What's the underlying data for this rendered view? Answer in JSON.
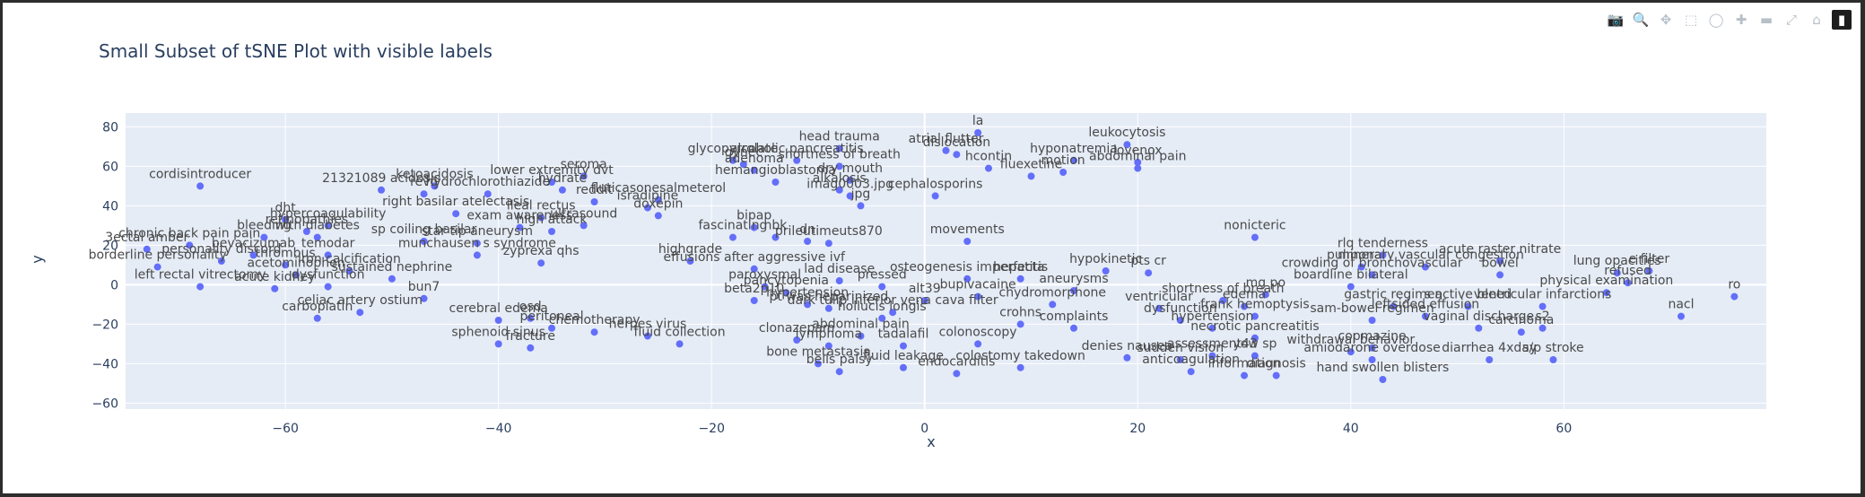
{
  "modebar": {
    "icons": [
      "camera-icon",
      "zoom-icon",
      "pan-icon",
      "box-select-icon",
      "lasso-icon",
      "zoom-in-icon",
      "zoom-out-icon",
      "autoscale-icon",
      "reset-axes-icon",
      "plotly-logo-icon"
    ],
    "glyphs": [
      "📷",
      "🔍",
      "✥",
      "⬚",
      "◯",
      "✚",
      "▬",
      "⤢",
      "⌂",
      "▮"
    ]
  },
  "colors": {
    "marker": "#636efa",
    "plot_bg": "#e5ecf6",
    "grid": "#ffffff",
    "text": "#2a3f5f"
  },
  "chart_data": {
    "type": "scatter",
    "title": "Small Subset of tSNE Plot with visible labels",
    "xlabel": "x",
    "ylabel": "y",
    "xlim": [
      -75,
      79
    ],
    "ylim": [
      -63,
      87
    ],
    "xticks": [
      -60,
      -40,
      -20,
      0,
      20,
      40,
      60
    ],
    "yticks": [
      -60,
      -40,
      -20,
      0,
      20,
      40,
      60,
      80
    ],
    "grid": true,
    "points": [
      {
        "x": 5,
        "y": 77,
        "label": "la"
      },
      {
        "x": 3,
        "y": 66,
        "label": "dislocation"
      },
      {
        "x": 19,
        "y": 71,
        "label": "leukocytosis"
      },
      {
        "x": 20,
        "y": 62,
        "label": "lovenox"
      },
      {
        "x": 20,
        "y": 59,
        "label": "abdominal pain"
      },
      {
        "x": 14,
        "y": 63,
        "label": "hyponatremia"
      },
      {
        "x": 2,
        "y": 68,
        "label": "atrial flutter"
      },
      {
        "x": 6,
        "y": 59,
        "label": "hcontin"
      },
      {
        "x": 10,
        "y": 55,
        "label": "fluexetine"
      },
      {
        "x": 13,
        "y": 57,
        "label": "motion"
      },
      {
        "x": 1,
        "y": 45,
        "label": "cephalosporins"
      },
      {
        "x": -8,
        "y": 69,
        "label": "head trauma"
      },
      {
        "x": -12,
        "y": 63,
        "label": "alcoholic pancreatitis"
      },
      {
        "x": -18,
        "y": 63,
        "label": "glycopyrrolate"
      },
      {
        "x": -17,
        "y": 61,
        "label": "gynec"
      },
      {
        "x": -16,
        "y": 58,
        "label": "adenoma"
      },
      {
        "x": -8,
        "y": 60,
        "label": "shortness of breath"
      },
      {
        "x": -14,
        "y": 52,
        "label": "hemangioblastoma"
      },
      {
        "x": -7,
        "y": 53,
        "label": "dry mouth"
      },
      {
        "x": -8,
        "y": 48,
        "label": "alkalosis"
      },
      {
        "x": -7,
        "y": 45,
        "label": "imag0003.jpg"
      },
      {
        "x": -6,
        "y": 40,
        "label": "jpg"
      },
      {
        "x": -32,
        "y": 55,
        "label": "seroma"
      },
      {
        "x": -35,
        "y": 52,
        "label": "lower extremity dvt"
      },
      {
        "x": -51,
        "y": 48,
        "label": "21321089 acidosis"
      },
      {
        "x": -46,
        "y": 50,
        "label": "ketoacidosis"
      },
      {
        "x": -47,
        "y": 46,
        "label": "revo"
      },
      {
        "x": -41,
        "y": 46,
        "label": "hydrochlorothiazide"
      },
      {
        "x": -34,
        "y": 48,
        "label": "hydrate"
      },
      {
        "x": -31,
        "y": 42,
        "label": "reddit"
      },
      {
        "x": -25,
        "y": 43,
        "label": "fluticasonesalmeterol"
      },
      {
        "x": -26,
        "y": 39,
        "label": "isradipine"
      },
      {
        "x": -25,
        "y": 35,
        "label": "doxepin"
      },
      {
        "x": -68,
        "y": 50,
        "label": "cordisintroducer"
      },
      {
        "x": -60,
        "y": 33,
        "label": "dht"
      },
      {
        "x": -56,
        "y": 30,
        "label": "hypercoagulability"
      },
      {
        "x": -44,
        "y": 36,
        "label": "right basilar atelectasis"
      },
      {
        "x": -36,
        "y": 34,
        "label": "ileal rectus"
      },
      {
        "x": -32,
        "y": 30,
        "label": "ultrasound"
      },
      {
        "x": -38,
        "y": 29,
        "label": "exam awareness"
      },
      {
        "x": -35,
        "y": 27,
        "label": "high attack"
      },
      {
        "x": -58,
        "y": 27,
        "label": "retinopathies"
      },
      {
        "x": -62,
        "y": 24,
        "label": "bleeding"
      },
      {
        "x": -57,
        "y": 24,
        "label": "with diabetes"
      },
      {
        "x": -69,
        "y": 20,
        "label": "chronic back pain pain"
      },
      {
        "x": -73,
        "y": 18,
        "label": "3ectal amber"
      },
      {
        "x": -47,
        "y": 22,
        "label": "sp coiling basilar"
      },
      {
        "x": -42,
        "y": 21,
        "label": "star tip aneurysm"
      },
      {
        "x": -42,
        "y": 15,
        "label": "munchausen s syndrome"
      },
      {
        "x": -36,
        "y": 11,
        "label": "zyprexa qhs"
      },
      {
        "x": -63,
        "y": 15,
        "label": "bevacizumab"
      },
      {
        "x": -56,
        "y": 15,
        "label": "temodar"
      },
      {
        "x": -66,
        "y": 12,
        "label": "personality discord"
      },
      {
        "x": -60,
        "y": 10,
        "label": "thrombus"
      },
      {
        "x": -72,
        "y": 9,
        "label": "borderline personality"
      },
      {
        "x": -54,
        "y": 7,
        "label": "iron calcification"
      },
      {
        "x": -59,
        "y": 5,
        "label": "acetominophen"
      },
      {
        "x": -50,
        "y": 3,
        "label": "sustained nephrine"
      },
      {
        "x": -68,
        "y": -1,
        "label": "left rectal vitrectomy"
      },
      {
        "x": -61,
        "y": -2,
        "label": "acute kidney"
      },
      {
        "x": -56,
        "y": -1,
        "label": "dysfunction"
      },
      {
        "x": -47,
        "y": -7,
        "label": "bun7"
      },
      {
        "x": -53,
        "y": -14,
        "label": "celiac artery ostium"
      },
      {
        "x": -57,
        "y": -17,
        "label": "carboplatin"
      },
      {
        "x": -40,
        "y": -18,
        "label": "cerebral edema"
      },
      {
        "x": -37,
        "y": -17,
        "label": "osd"
      },
      {
        "x": -35,
        "y": -22,
        "label": "peritoneal"
      },
      {
        "x": -31,
        "y": -24,
        "label": "chemotherapy"
      },
      {
        "x": -26,
        "y": -26,
        "label": "herpes virus"
      },
      {
        "x": -23,
        "y": -30,
        "label": "fluid collection"
      },
      {
        "x": -40,
        "y": -30,
        "label": "sphenoid sinus"
      },
      {
        "x": -37,
        "y": -32,
        "label": "fracture"
      },
      {
        "x": -22,
        "y": 12,
        "label": "highgrade"
      },
      {
        "x": -16,
        "y": 29,
        "label": "bipap"
      },
      {
        "x": -18,
        "y": 24,
        "label": "fascinating"
      },
      {
        "x": -14,
        "y": 24,
        "label": "nbk"
      },
      {
        "x": -11,
        "y": 22,
        "label": "dn"
      },
      {
        "x": -9,
        "y": 21,
        "label": "prileutimeuts870"
      },
      {
        "x": 4,
        "y": 22,
        "label": "movements"
      },
      {
        "x": 31,
        "y": 24,
        "label": "nonicteric"
      },
      {
        "x": -16,
        "y": 8,
        "label": "effusions after aggressive ivf"
      },
      {
        "x": -15,
        "y": -1,
        "label": "paroxysmal"
      },
      {
        "x": -13,
        "y": -4,
        "label": "pancytopenia"
      },
      {
        "x": -8,
        "y": 2,
        "label": "lad disease"
      },
      {
        "x": -4,
        "y": -1,
        "label": "pressed"
      },
      {
        "x": -16,
        "y": -8,
        "label": "beta2p10"
      },
      {
        "x": -11,
        "y": -10,
        "label": "hypertension"
      },
      {
        "x": -9,
        "y": -12,
        "label": "pt was heparinized"
      },
      {
        "x": -3,
        "y": -14,
        "label": "dark tulip inferior vena cava filter"
      },
      {
        "x": 4,
        "y": 3,
        "label": "osteogenesis imperfecta"
      },
      {
        "x": 9,
        "y": 3,
        "label": "hepatitis"
      },
      {
        "x": 0,
        "y": -8,
        "label": "alt39"
      },
      {
        "x": 5,
        "y": -6,
        "label": "bupivacaine"
      },
      {
        "x": 12,
        "y": -10,
        "label": "chydromorphone"
      },
      {
        "x": -4,
        "y": -17,
        "label": "hollucis longis"
      },
      {
        "x": 17,
        "y": 7,
        "label": "hypokinetic"
      },
      {
        "x": 21,
        "y": 6,
        "label": "pts cr"
      },
      {
        "x": 14,
        "y": -3,
        "label": "aneurysms"
      },
      {
        "x": 9,
        "y": -20,
        "label": "crohns"
      },
      {
        "x": 14,
        "y": -22,
        "label": "complaints"
      },
      {
        "x": 24,
        "y": -18,
        "label": "dysfunction"
      },
      {
        "x": 27,
        "y": -22,
        "label": "hypertension"
      },
      {
        "x": -6,
        "y": -26,
        "label": "abdominal pain"
      },
      {
        "x": -12,
        "y": -28,
        "label": "clonazepam"
      },
      {
        "x": -9,
        "y": -31,
        "label": "lymphoma"
      },
      {
        "x": -2,
        "y": -31,
        "label": "tadalafil"
      },
      {
        "x": 5,
        "y": -30,
        "label": "colonoscopy"
      },
      {
        "x": -10,
        "y": -40,
        "label": "bone metastasis"
      },
      {
        "x": -8,
        "y": -44,
        "label": "bells palsy"
      },
      {
        "x": -2,
        "y": -42,
        "label": "fluid leakage"
      },
      {
        "x": 3,
        "y": -45,
        "label": "endocarditis"
      },
      {
        "x": 9,
        "y": -42,
        "label": "colostomy takedown"
      },
      {
        "x": 19,
        "y": -37,
        "label": "denies nausea"
      },
      {
        "x": 24,
        "y": -38,
        "label": "sudden vision"
      },
      {
        "x": 27,
        "y": -36,
        "label": "assessment43"
      },
      {
        "x": 31,
        "y": -36,
        "label": "yow sp"
      },
      {
        "x": 25,
        "y": -44,
        "label": "anticoagulation"
      },
      {
        "x": 30,
        "y": -46,
        "label": "information"
      },
      {
        "x": 33,
        "y": -46,
        "label": "diagnosis"
      },
      {
        "x": 22,
        "y": -12,
        "label": "ventricular"
      },
      {
        "x": 28,
        "y": -8,
        "label": "shortness of breath"
      },
      {
        "x": 31,
        "y": -16,
        "label": "frank hemoptysis"
      },
      {
        "x": 30,
        "y": -11,
        "label": "edema"
      },
      {
        "x": 32,
        "y": -5,
        "label": "mg po"
      },
      {
        "x": 31,
        "y": -27,
        "label": "necrotic pancreatitis"
      },
      {
        "x": 43,
        "y": 15,
        "label": "rlq tenderness"
      },
      {
        "x": 47,
        "y": 9,
        "label": "pulmonary vascular congestion"
      },
      {
        "x": 54,
        "y": 12,
        "label": "acute raster nitrate"
      },
      {
        "x": 41,
        "y": 9,
        "label": "mineral"
      },
      {
        "x": 42,
        "y": 5,
        "label": "crowding of bronchovascular"
      },
      {
        "x": 40,
        "y": -1,
        "label": "boardline bilateral"
      },
      {
        "x": 54,
        "y": 5,
        "label": "bowel"
      },
      {
        "x": 65,
        "y": 6,
        "label": "lung opacities"
      },
      {
        "x": 66,
        "y": 1,
        "label": "refused"
      },
      {
        "x": 68,
        "y": 7,
        "label": "e filter"
      },
      {
        "x": 64,
        "y": -4,
        "label": "physical examination"
      },
      {
        "x": 76,
        "y": -6,
        "label": "ro"
      },
      {
        "x": 44,
        "y": -11,
        "label": "gastric regimen"
      },
      {
        "x": 51,
        "y": -11,
        "label": "s active bleed"
      },
      {
        "x": 58,
        "y": -11,
        "label": "ventricular infarctions"
      },
      {
        "x": 47,
        "y": -16,
        "label": "leftsided effusion"
      },
      {
        "x": 42,
        "y": -18,
        "label": "sam-bowel regimen"
      },
      {
        "x": 52,
        "y": -22,
        "label": "vaginal discharge"
      },
      {
        "x": 56,
        "y": -24,
        "label": "carcinoma"
      },
      {
        "x": 58,
        "y": -22,
        "label": "s2"
      },
      {
        "x": 71,
        "y": -16,
        "label": "nacl"
      },
      {
        "x": 42,
        "y": -32,
        "label": "copmazine"
      },
      {
        "x": 40,
        "y": -34,
        "label": "withdrawal behavior"
      },
      {
        "x": 42,
        "y": -38,
        "label": "amiodarone overdose"
      },
      {
        "x": 53,
        "y": -38,
        "label": "diarrhea 4xday"
      },
      {
        "x": 59,
        "y": -38,
        "label": "s/p stroke"
      },
      {
        "x": 43,
        "y": -48,
        "label": "hand swollen blisters"
      }
    ]
  }
}
